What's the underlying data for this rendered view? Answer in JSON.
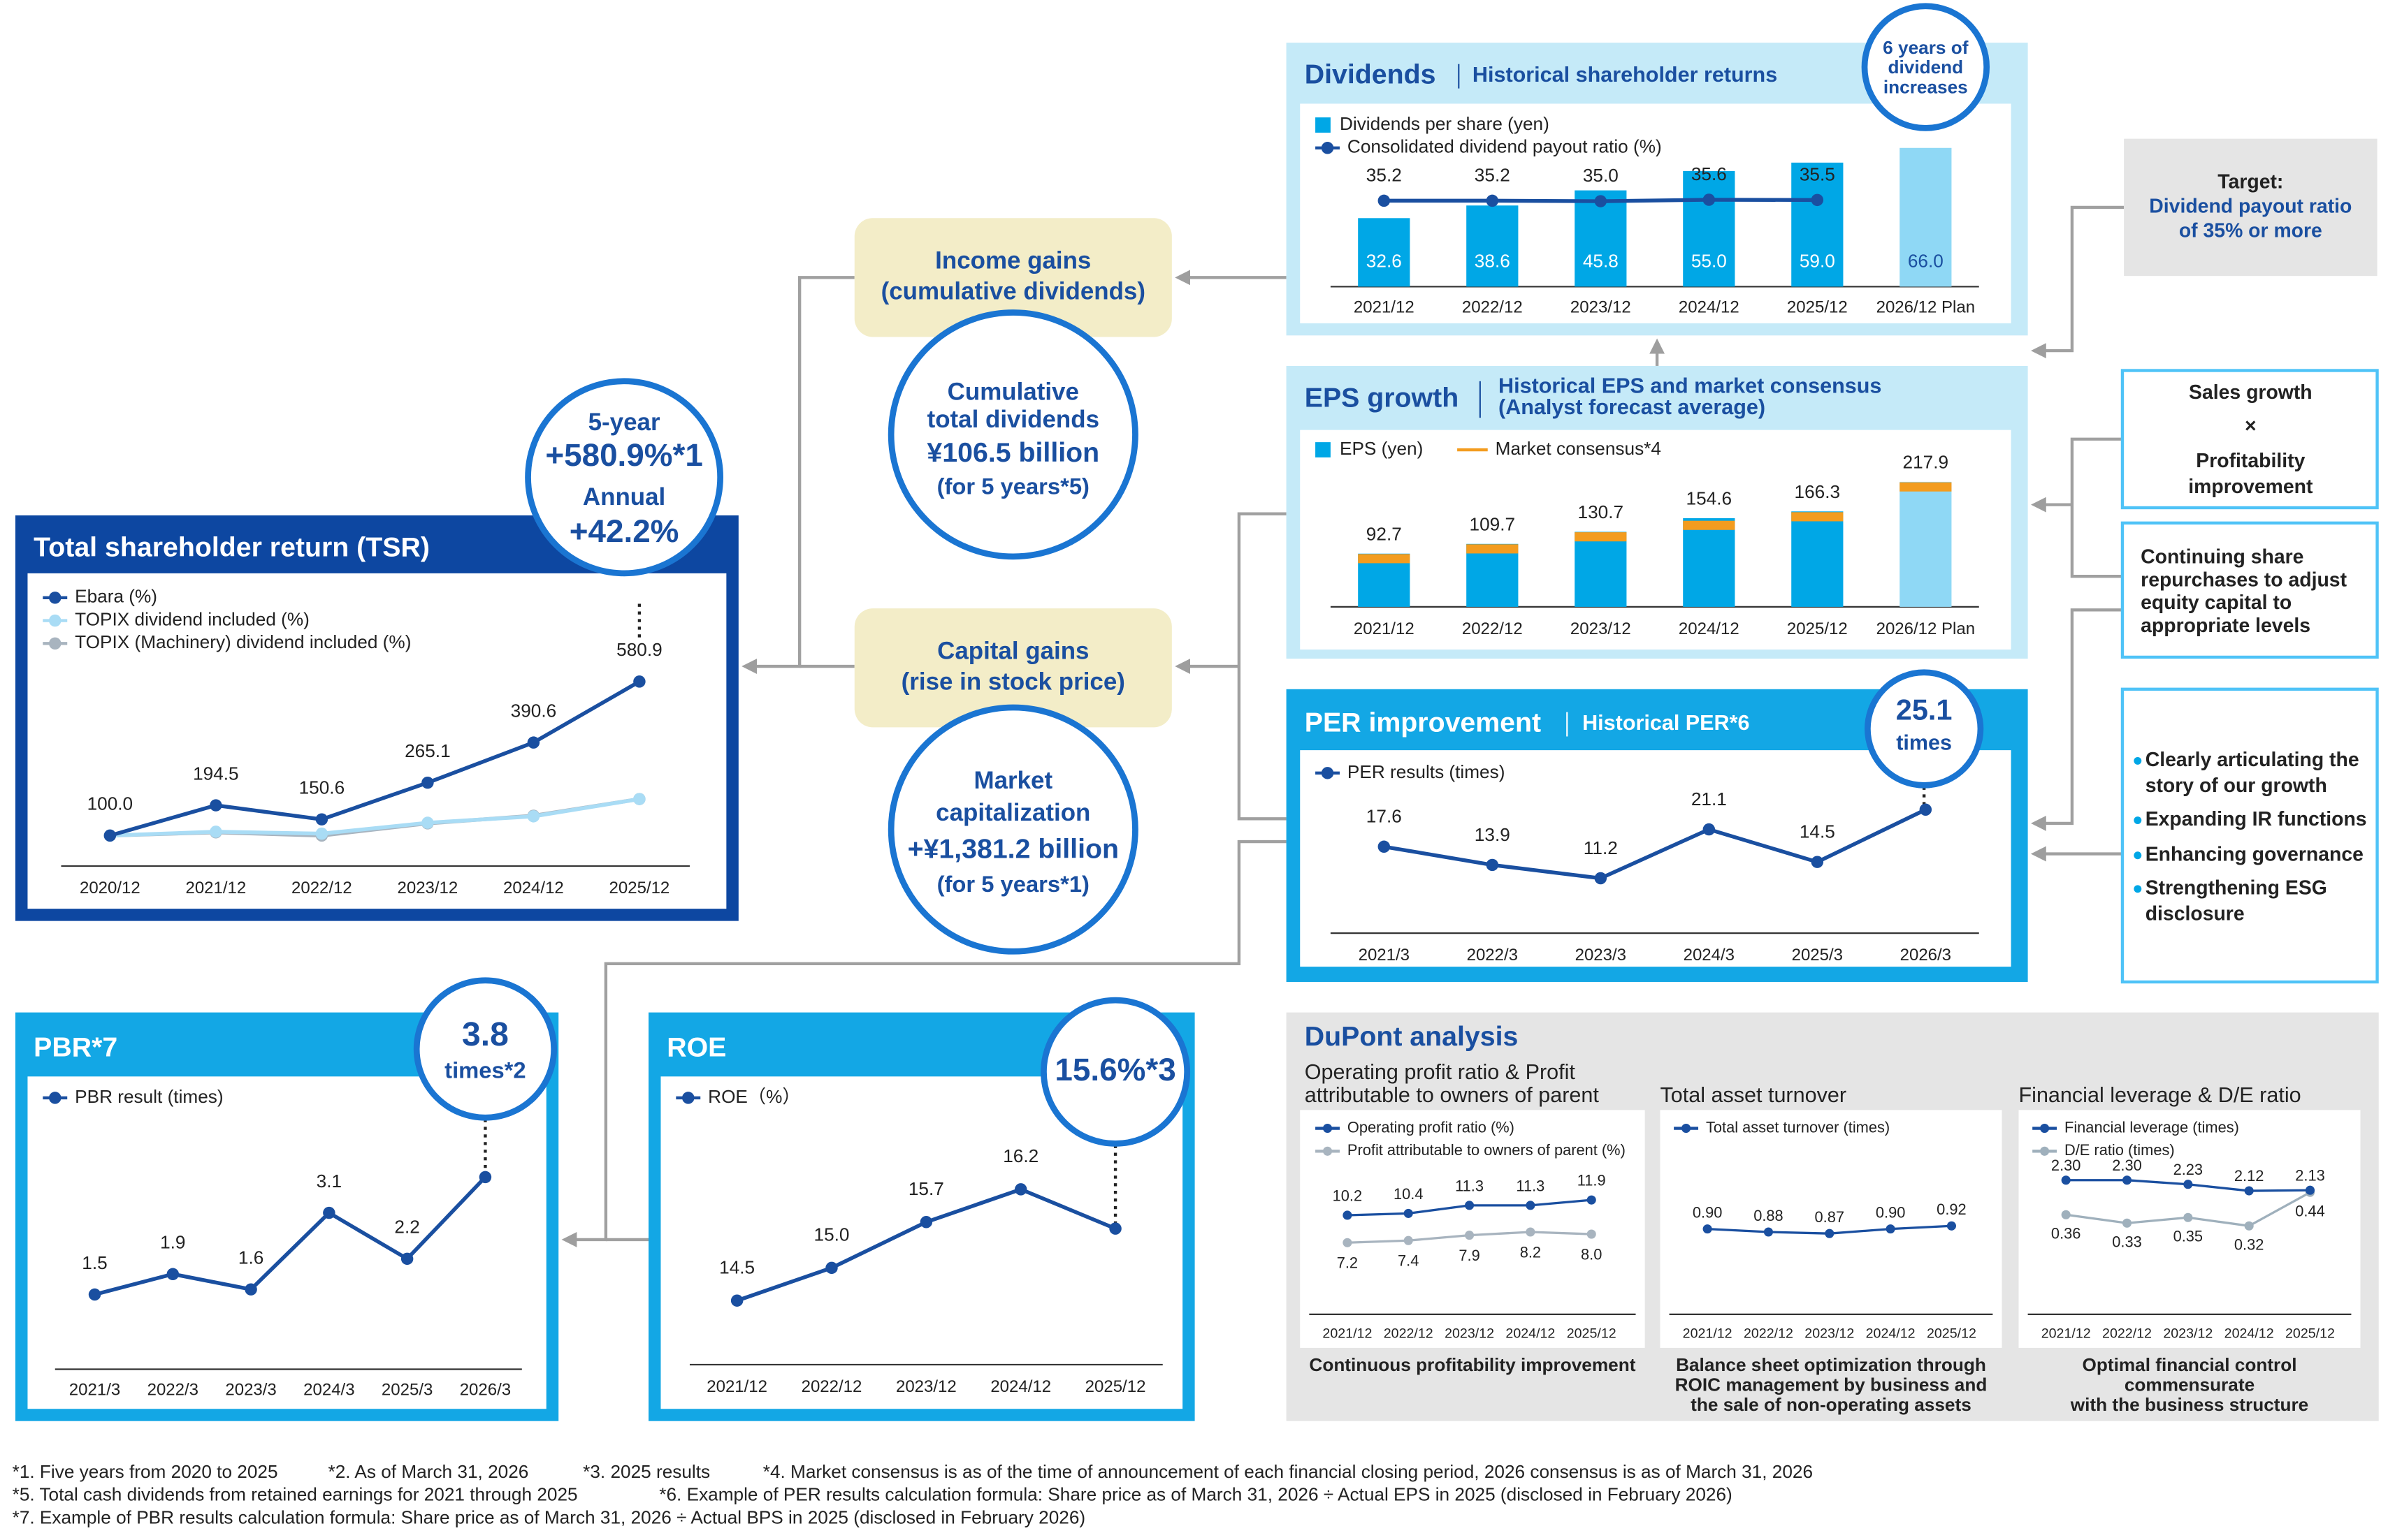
{
  "chart_data": [
    {
      "type": "bar",
      "title": "Dividends",
      "subtitle": "Historical shareholder returns",
      "callout": [
        "6 years of",
        "dividend",
        "increases"
      ],
      "categories": [
        "2021/12",
        "2022/12",
        "2023/12",
        "2024/12",
        "2025/12",
        "2026/12 Plan"
      ],
      "series": [
        {
          "name": "Dividends per share (yen)",
          "color": "#00a7e6",
          "colors": [
            "#00a7e6",
            "#00a7e6",
            "#00a7e6",
            "#00a7e6",
            "#00a7e6",
            "#8fd8f5"
          ],
          "values": [
            32.6,
            38.6,
            45.8,
            55.0,
            59.0,
            66.0
          ],
          "value_labels": [
            "32.6",
            "38.6",
            "45.8",
            "55.0",
            "59.0",
            "66.0"
          ]
        },
        {
          "name": "Consolidated dividend payout ratio (%)",
          "type": "line",
          "color": "#1a4fa0",
          "values": [
            35.2,
            35.2,
            35.0,
            35.6,
            35.5,
            null
          ],
          "value_labels": [
            "35.2",
            "35.2",
            "35.0",
            "35.6",
            "35.5",
            null
          ]
        }
      ]
    },
    {
      "type": "bar",
      "title": "EPS growth",
      "subtitle": [
        "Historical EPS and market consensus",
        "(Analyst forecast average)"
      ],
      "categories": [
        "2021/12",
        "2022/12",
        "2023/12",
        "2024/12",
        "2025/12",
        "2026/12 Plan"
      ],
      "series": [
        {
          "name": "EPS (yen)",
          "color": "#00a7e6",
          "colors": [
            "#00a7e6",
            "#00a7e6",
            "#00a7e6",
            "#00a7e6",
            "#00a7e6",
            "#8fd8f5"
          ],
          "values": [
            92.7,
            109.7,
            130.7,
            154.6,
            166.3,
            217.9
          ]
        },
        {
          "name": "Market consensus*4",
          "type": "marker",
          "color": "#f39c1f",
          "values": [
            92,
            109,
            130,
            150,
            165,
            217
          ],
          "value_labels": [
            null,
            null,
            null,
            null,
            null,
            null
          ]
        }
      ]
    },
    {
      "type": "line",
      "title": "PER improvement",
      "subtitle": "Historical PER*6",
      "callout": [
        "25.1",
        "times"
      ],
      "categories": [
        "2021/3",
        "2022/3",
        "2023/3",
        "2024/3",
        "2025/3",
        "2026/3"
      ],
      "series": [
        {
          "name": "PER results (times)",
          "color": "#1a4fa0",
          "values": [
            17.6,
            13.9,
            11.2,
            21.1,
            14.5,
            25.1
          ],
          "value_labels": [
            "17.6",
            "13.9",
            "11.2",
            "21.1",
            "14.5",
            null
          ]
        }
      ]
    },
    {
      "type": "line",
      "title": "Total shareholder return (TSR)",
      "callout": [
        "5-year",
        "+580.9%*1",
        "Annual",
        "+42.2%"
      ],
      "categories": [
        "2020/12",
        "2021/12",
        "2022/12",
        "2023/12",
        "2024/12",
        "2025/12"
      ],
      "series": [
        {
          "name": "Ebara (%)",
          "color": "#1a4fa0",
          "values": [
            100.0,
            194.5,
            150.6,
            265.1,
            390.6,
            580.9
          ],
          "value_labels": [
            "100.0",
            "194.5",
            "150.6",
            "265.1",
            "390.6",
            "580.9"
          ]
        },
        {
          "name": "TOPIX dividend included (%)",
          "color": "#a9dcf5",
          "values": [
            100,
            112,
            106,
            140,
            160,
            214
          ],
          "value_labels": [
            null,
            null,
            null,
            null,
            null,
            null
          ]
        },
        {
          "name": "TOPIX (Machinery) dividend included (%)",
          "color": "#a8b4bf",
          "values": [
            100,
            110,
            100,
            138,
            162,
            214
          ],
          "value_labels": [
            null,
            null,
            null,
            null,
            null,
            null
          ]
        }
      ]
    },
    {
      "type": "line",
      "title": "PBR*7",
      "callout": [
        "3.8",
        "times*2"
      ],
      "categories": [
        "2021/3",
        "2022/3",
        "2023/3",
        "2024/3",
        "2025/3",
        "2026/3"
      ],
      "series": [
        {
          "name": "PBR result (times)",
          "color": "#1a4fa0",
          "values": [
            1.5,
            1.9,
            1.6,
            3.1,
            2.2,
            3.8
          ],
          "value_labels": [
            "1.5",
            "1.9",
            "1.6",
            "3.1",
            "2.2",
            null
          ]
        }
      ]
    },
    {
      "type": "line",
      "title": "ROE",
      "callout": [
        "15.6%*3"
      ],
      "categories": [
        "2021/12",
        "2022/12",
        "2023/12",
        "2024/12",
        "2025/12"
      ],
      "series": [
        {
          "name": "ROE（%）",
          "color": "#1a4fa0",
          "values": [
            14.5,
            15.0,
            15.7,
            16.2,
            15.6
          ],
          "value_labels": [
            "14.5",
            "15.0",
            "15.7",
            "16.2",
            null
          ]
        }
      ]
    },
    {
      "type": "line",
      "title": [
        "Operating profit ratio & Profit",
        "attributable to owners of parent"
      ],
      "caption": [
        "Continuous profitability improvement"
      ],
      "categories": [
        "2021/12",
        "2022/12",
        "2023/12",
        "2024/12",
        "2025/12"
      ],
      "series": [
        {
          "name": "Operating profit ratio (%)",
          "color": "#1a4fa0",
          "values": [
            10.2,
            10.4,
            11.3,
            11.3,
            11.9
          ]
        },
        {
          "name": "Profit attributable to owners of parent (%)",
          "color": "#a8b4bf",
          "values": [
            7.2,
            7.4,
            7.9,
            8.2,
            8.0
          ],
          "value_labels": [
            "7.2",
            "7.4",
            "7.9",
            "8.2",
            "8.0"
          ]
        }
      ]
    },
    {
      "type": "line",
      "title": [
        "Total asset turnover"
      ],
      "caption": [
        "Balance sheet optimization through",
        "ROIC management by business and",
        "the sale of non-operating assets"
      ],
      "categories": [
        "2021/12",
        "2022/12",
        "2023/12",
        "2024/12",
        "2025/12"
      ],
      "series": [
        {
          "name": "Total asset turnover (times)",
          "color": "#1a4fa0",
          "values": [
            0.9,
            0.88,
            0.87,
            0.9,
            0.92
          ],
          "value_labels": [
            "0.90",
            "0.88",
            "0.87",
            "0.90",
            "0.92"
          ]
        }
      ]
    },
    {
      "type": "line",
      "title": [
        "Financial leverage & D/E ratio"
      ],
      "caption": [
        "Optimal financial control",
        "commensurate",
        "with the business structure"
      ],
      "categories": [
        "2021/12",
        "2022/12",
        "2023/12",
        "2024/12",
        "2025/12"
      ],
      "series": [
        {
          "name": "Financial leverage (times)",
          "color": "#1a4fa0",
          "values": [
            2.3,
            2.3,
            2.23,
            2.12,
            2.13
          ],
          "value_labels": [
            "2.30",
            "2.30",
            "2.23",
            "2.12",
            "2.13"
          ]
        },
        {
          "name": "D/E ratio (times)",
          "color": "#9fb0bc",
          "values": [
            0.36,
            0.33,
            0.35,
            0.32,
            0.44
          ],
          "value_labels": [
            "0.36",
            "0.33",
            "0.35",
            "0.32",
            "0.44"
          ]
        }
      ]
    }
  ],
  "flow": {
    "income_gains": [
      "Income gains",
      "(cumulative dividends)"
    ],
    "cumulative_dividends": [
      "Cumulative",
      "total dividends",
      "¥106.5 billion",
      "(for 5 years*5)"
    ],
    "capital_gains": [
      "Capital gains",
      "(rise in stock price)"
    ],
    "market_cap": [
      "Market",
      "capitalization",
      "+¥1,381.2 billion",
      "(for 5 years*1)"
    ],
    "target": [
      "Target:",
      "Dividend payout ratio",
      "of 35% or more"
    ],
    "growth": [
      "Sales growth",
      "×",
      "Profitability",
      "improvement"
    ],
    "repurchase": [
      "Continuing share",
      "repurchases to adjust",
      "equity capital to",
      "appropriate levels"
    ],
    "initiatives": [
      [
        "Clearly articulating the",
        "story of our growth"
      ],
      [
        "Expanding IR functions"
      ],
      [
        "Enhancing governance"
      ],
      [
        "Strengthening ESG",
        "disclosure"
      ]
    ]
  },
  "dupont": {
    "title": "DuPont analysis"
  },
  "footnotes": [
    [
      "*1. Five years from 2020 to 2025",
      "*2. As of March 31, 2026",
      "*3. 2025 results",
      "*4. Market consensus is as of the time of announcement of each financial closing period, 2026 consensus is as of March 31, 2026"
    ],
    [
      "*5. Total cash dividends from retained earnings for 2021 through 2025",
      "*6. Example of PER results calculation formula: Share price as of March 31, 2026 ÷ Actual EPS in 2025 (disclosed in February 2026)"
    ],
    [
      "*7. Example of PBR results calculation formula: Share price as of March 31, 2026 ÷ Actual BPS in 2025 (disclosed in February 2026)"
    ]
  ]
}
